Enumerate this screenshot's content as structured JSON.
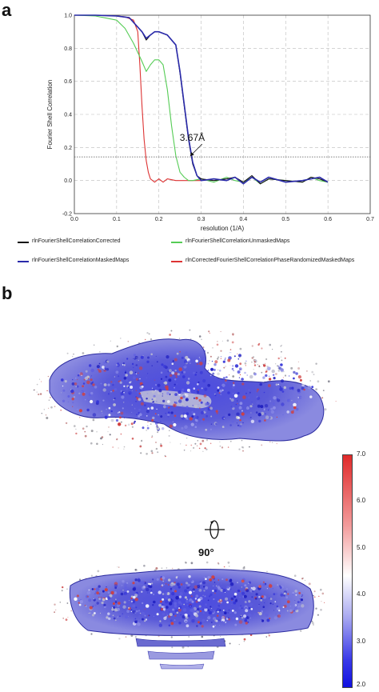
{
  "panels": {
    "a_label": "a",
    "b_label": "b"
  },
  "chart_data": {
    "type": "line",
    "xlabel": "resolution (1/A)",
    "ylabel": "Fourier Shell Correlation",
    "xlim": [
      0.0,
      0.7
    ],
    "ylim": [
      -0.2,
      1.0
    ],
    "x_ticks": [
      "0.0",
      "0.1",
      "0.2",
      "0.3",
      "0.4",
      "0.5",
      "0.6",
      "0.7"
    ],
    "y_ticks": [
      "-0.2",
      "0.0",
      "0.2",
      "0.4",
      "0.6",
      "0.8",
      "1.0"
    ],
    "grid": true,
    "threshold": 0.143,
    "annotation": {
      "text": "3.67Å",
      "x": 0.272,
      "y": 0.143
    },
    "legend_position": "bottom",
    "series": [
      {
        "name": "rlnFourierShellCorrelationCorrected",
        "color": "#111111",
        "x": [
          0.0,
          0.05,
          0.1,
          0.13,
          0.16,
          0.17,
          0.18,
          0.19,
          0.2,
          0.22,
          0.24,
          0.25,
          0.26,
          0.27,
          0.28,
          0.29,
          0.3,
          0.33,
          0.36,
          0.38,
          0.4,
          0.42,
          0.44,
          0.46,
          0.5,
          0.54,
          0.56,
          0.58,
          0.6
        ],
        "y": [
          1.0,
          1.0,
          0.995,
          0.985,
          0.9,
          0.85,
          0.88,
          0.9,
          0.9,
          0.88,
          0.82,
          0.65,
          0.45,
          0.25,
          0.1,
          0.03,
          0.01,
          0.0,
          0.01,
          0.02,
          -0.01,
          0.03,
          -0.02,
          0.01,
          0.0,
          -0.01,
          0.02,
          0.01,
          -0.01
        ]
      },
      {
        "name": "rlnFourierShellCorrelationUnmaskedMaps",
        "color": "#55cc55",
        "x": [
          0.0,
          0.05,
          0.1,
          0.12,
          0.14,
          0.16,
          0.17,
          0.18,
          0.19,
          0.2,
          0.21,
          0.22,
          0.23,
          0.24,
          0.25,
          0.26,
          0.27,
          0.28,
          0.3,
          0.33,
          0.36,
          0.38,
          0.4,
          0.42,
          0.44,
          0.46,
          0.5,
          0.54,
          0.56,
          0.58,
          0.6
        ],
        "y": [
          1.0,
          0.995,
          0.97,
          0.92,
          0.83,
          0.72,
          0.66,
          0.7,
          0.73,
          0.73,
          0.7,
          0.55,
          0.33,
          0.15,
          0.05,
          0.02,
          0.0,
          0.0,
          0.01,
          -0.01,
          0.02,
          0.0,
          -0.01,
          0.02,
          -0.02,
          0.01,
          0.0,
          -0.01,
          0.02,
          0.0,
          -0.01
        ]
      },
      {
        "name": "rlnFourierShellCorrelationMaskedMaps",
        "color": "#2a2aaa",
        "x": [
          0.0,
          0.05,
          0.1,
          0.13,
          0.16,
          0.17,
          0.18,
          0.19,
          0.2,
          0.22,
          0.24,
          0.25,
          0.26,
          0.27,
          0.28,
          0.29,
          0.3,
          0.33,
          0.36,
          0.38,
          0.4,
          0.42,
          0.44,
          0.46,
          0.5,
          0.54,
          0.56,
          0.58,
          0.6
        ],
        "y": [
          1.0,
          1.0,
          0.995,
          0.985,
          0.9,
          0.86,
          0.88,
          0.9,
          0.9,
          0.88,
          0.82,
          0.66,
          0.46,
          0.26,
          0.11,
          0.03,
          0.0,
          0.01,
          0.0,
          0.02,
          -0.02,
          0.02,
          -0.01,
          0.02,
          -0.01,
          0.0,
          0.01,
          0.02,
          -0.01
        ]
      },
      {
        "name": "rlnCorrectedFourierShellCorrelationPhaseRandomizedMaskedMaps",
        "color": "#dd3333",
        "x": [
          0.0,
          0.05,
          0.1,
          0.12,
          0.14,
          0.15,
          0.155,
          0.16,
          0.165,
          0.17,
          0.175,
          0.18,
          0.19,
          0.2,
          0.21,
          0.22,
          0.24,
          0.26,
          0.28,
          0.3
        ],
        "y": [
          1.0,
          1.0,
          0.995,
          0.99,
          0.97,
          0.9,
          0.7,
          0.45,
          0.25,
          0.12,
          0.05,
          0.01,
          -0.01,
          0.01,
          -0.01,
          0.01,
          0.0,
          0.0,
          0.0,
          0.0
        ]
      }
    ]
  },
  "panel_b": {
    "rotation_label": "90°",
    "colorbar": {
      "ticks": [
        "7.0",
        "6.0",
        "5.0",
        "4.0",
        "3.0",
        "2.0"
      ],
      "min": 2.0,
      "max": 7.0,
      "colors": {
        "high": "#e02a2a",
        "mid": "#ffffff",
        "low": "#1010e0"
      }
    }
  }
}
